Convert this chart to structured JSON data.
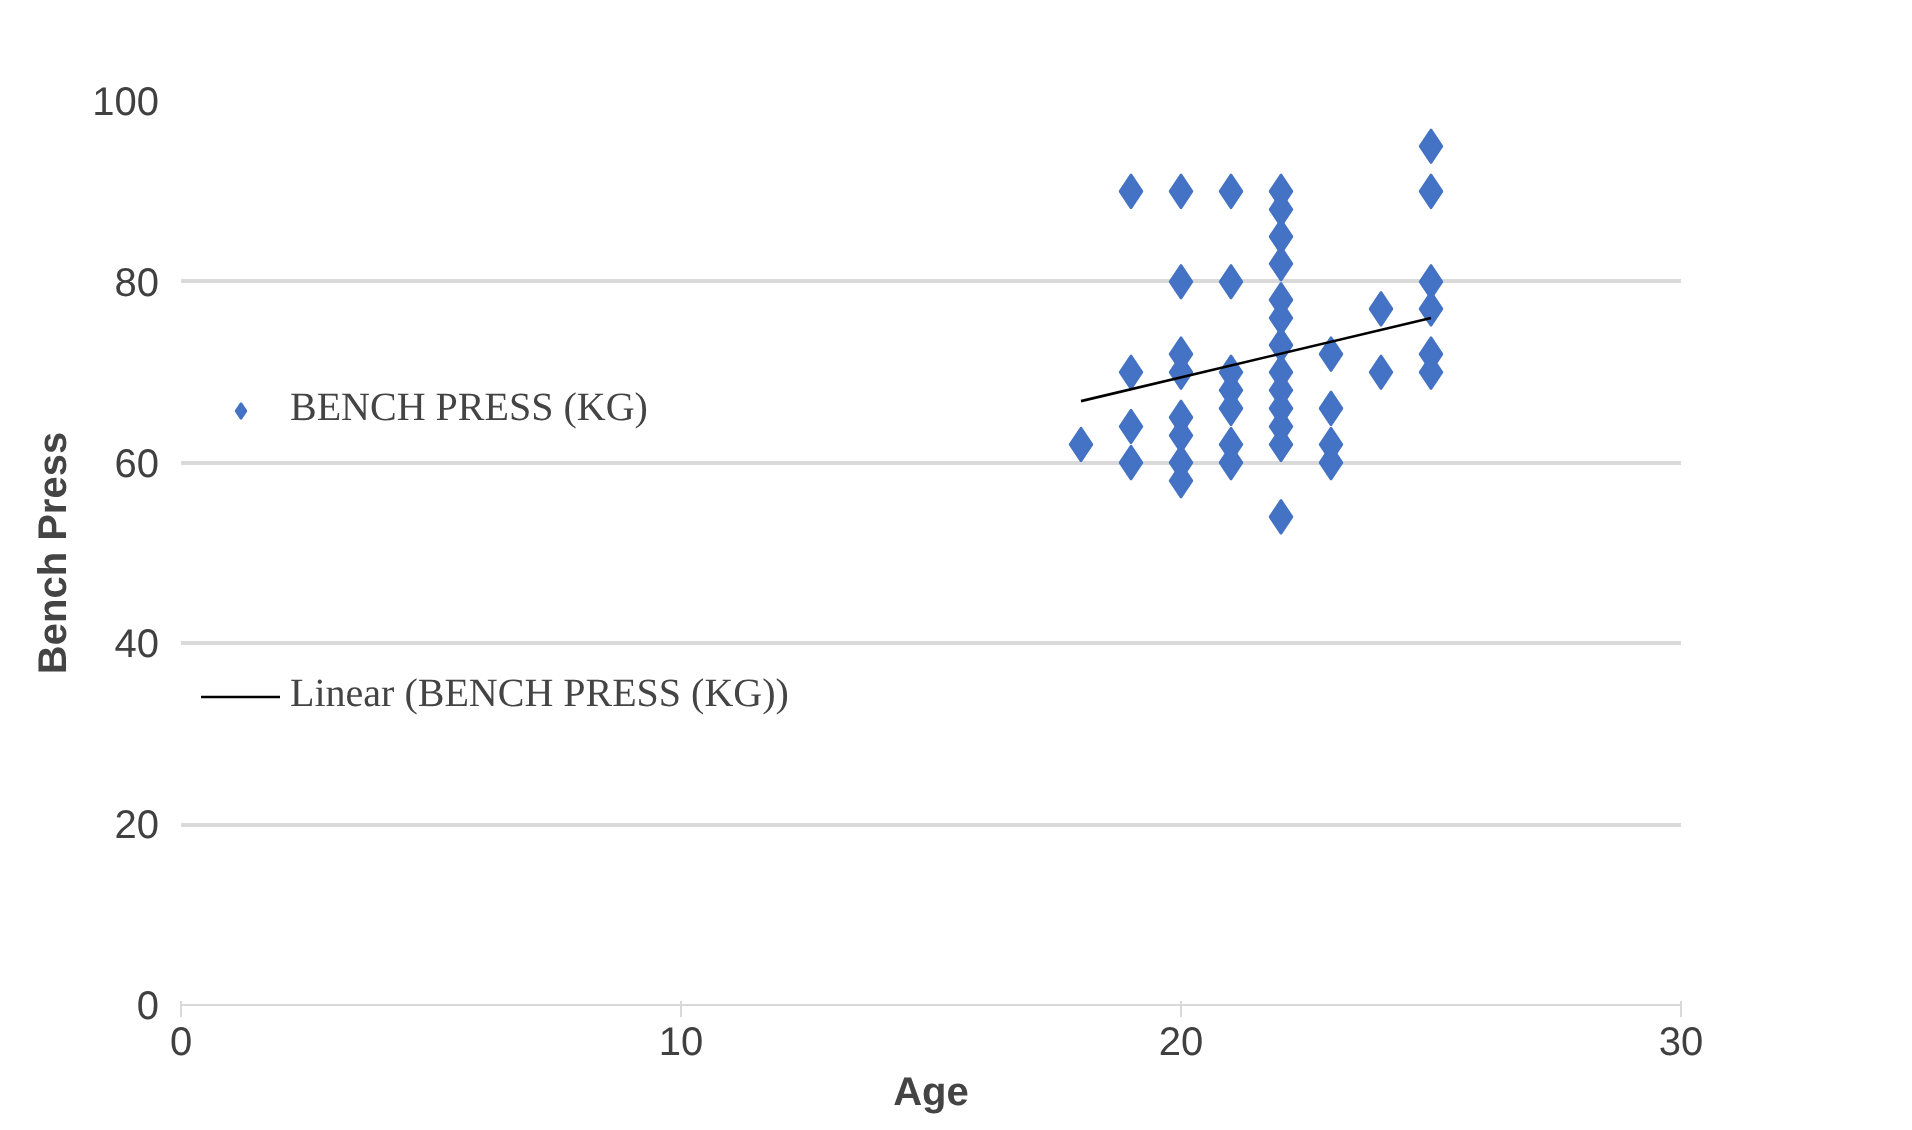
{
  "chart_data": {
    "type": "scatter",
    "xlabel": "Age",
    "ylabel": "Bench Press",
    "xlim": [
      0,
      30
    ],
    "xticks": [
      0,
      10,
      20,
      30
    ],
    "ylim": [
      0,
      100
    ],
    "yticks": [
      0,
      20,
      40,
      60,
      80,
      100
    ],
    "grid": "y",
    "legend": "left",
    "marker": "diamond",
    "series": [
      {
        "name": "BENCH PRESS (KG)",
        "color": "#4472c4",
        "x": [
          18,
          19,
          19,
          19,
          19,
          20,
          20,
          20,
          20,
          20,
          20,
          20,
          20,
          21,
          21,
          21,
          21,
          21,
          21,
          21,
          22,
          22,
          22,
          22,
          22,
          22,
          22,
          22,
          22,
          22,
          22,
          22,
          22,
          23,
          23,
          23,
          23,
          24,
          24,
          25,
          25,
          25,
          25,
          25,
          25
        ],
        "values": [
          62,
          90,
          70,
          64,
          60,
          90,
          80,
          72,
          70,
          65,
          63,
          60,
          58,
          90,
          80,
          70,
          68,
          66,
          62,
          60,
          90,
          88,
          85,
          82,
          78,
          76,
          73,
          70,
          68,
          66,
          64,
          62,
          54,
          72,
          66,
          62,
          60,
          77,
          70,
          95,
          90,
          80,
          77,
          72,
          70
        ]
      },
      {
        "name": "Linear (BENCH PRESS (KG))",
        "type": "line",
        "color": "#000000",
        "marker": "none",
        "x": [
          18,
          25
        ],
        "values": [
          66.8,
          76
        ]
      }
    ]
  }
}
